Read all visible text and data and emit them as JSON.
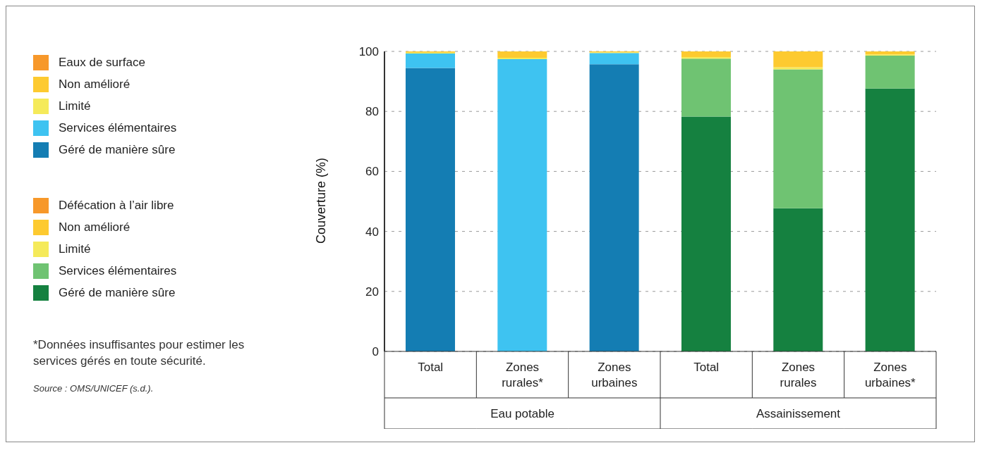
{
  "chart_data": {
    "type": "bar",
    "stacked": true,
    "ylabel": "Couverture (%)",
    "categories": [
      "Total",
      "Zones rurales*",
      "Zones urbaines",
      "Total",
      "Zones rurales",
      "Zones urbaines*"
    ],
    "series": [
      {
        "name": "Géré de manière sûre",
        "color": "#147db3",
        "values": [
          94.5,
          null,
          95.7,
          null,
          null,
          null
        ]
      },
      {
        "name": "Services élémentaires",
        "color": "#3ec3f1",
        "values": [
          4.8,
          97.4,
          3.8,
          null,
          null,
          null
        ]
      },
      {
        "name": "Limité",
        "color": "#f5ea5a",
        "values": [
          0.3,
          0.5,
          0.2,
          null,
          null,
          null
        ]
      },
      {
        "name": "Non amélioré",
        "color": "#fdca30",
        "values": [
          0.4,
          2.1,
          0.3,
          null,
          null,
          null
        ]
      },
      {
        "name": "Eaux de surface",
        "color": "#f7982a",
        "values": [
          0,
          0,
          0,
          null,
          null,
          null
        ]
      },
      {
        "name": "Géré de manière sûre",
        "color": "#158140",
        "values": [
          null,
          null,
          null,
          78.3,
          47.7,
          87.6
        ]
      },
      {
        "name": "Services élémentaires",
        "color": "#6fc372",
        "values": [
          null,
          null,
          null,
          19.3,
          46.3,
          11.0
        ]
      },
      {
        "name": "Limité",
        "color": "#f5ea5a",
        "values": [
          null,
          null,
          null,
          0.5,
          0.7,
          0.4
        ]
      },
      {
        "name": "Non amélioré",
        "color": "#fdca30",
        "values": [
          null,
          null,
          null,
          1.9,
          5.3,
          1.0
        ]
      },
      {
        "name": "Défécation à l’air libre",
        "color": "#f7982a",
        "values": [
          null,
          null,
          null,
          0,
          0,
          0
        ]
      }
    ],
    "ylim": [
      0,
      100
    ],
    "yticks": [
      0,
      20,
      40,
      60,
      80,
      100
    ],
    "grid": "y",
    "legend": "left",
    "annotations": [
      "Eau potable",
      "Assainissement",
      "*Données insuffisantes pour estimer les services gérés en toute sécurité.",
      "Source : OMS/UNICEF (s.d.)."
    ]
  }
}
